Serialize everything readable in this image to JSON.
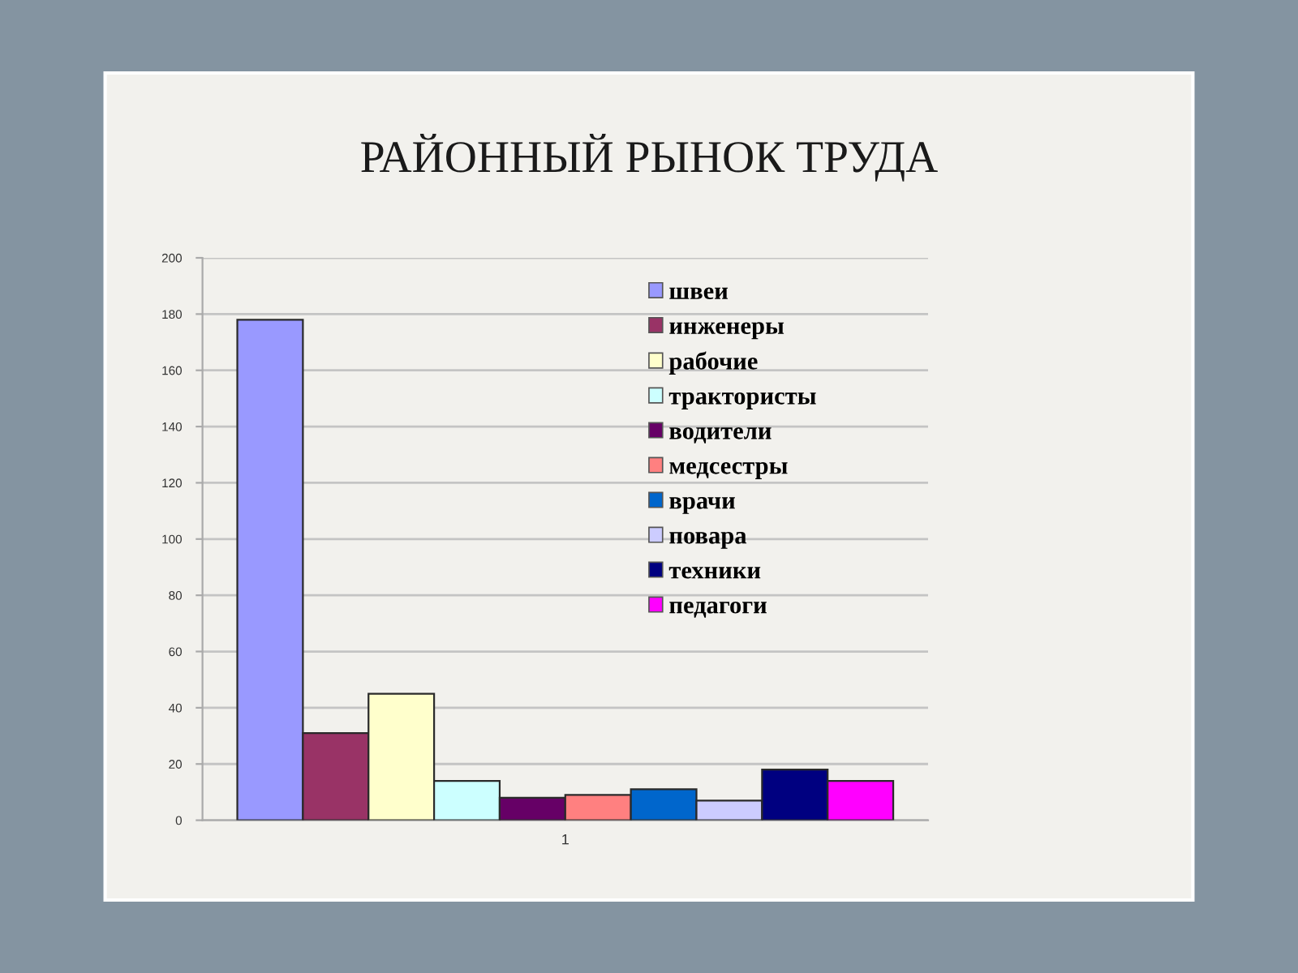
{
  "chart_data": {
    "type": "bar",
    "title": "РАЙОННЫЙ РЫНОК ТРУДА",
    "categories": [
      "1"
    ],
    "series": [
      {
        "name": "швеи",
        "color": "#9999ff",
        "values": [
          178
        ]
      },
      {
        "name": "инженеры",
        "color": "#993366",
        "values": [
          31
        ]
      },
      {
        "name": "рабочие",
        "color": "#ffffcc",
        "values": [
          45
        ]
      },
      {
        "name": "трактористы",
        "color": "#ccffff",
        "values": [
          14
        ]
      },
      {
        "name": "водители",
        "color": "#660066",
        "values": [
          8
        ]
      },
      {
        "name": "медсестры",
        "color": "#ff8080",
        "values": [
          9
        ]
      },
      {
        "name": "врачи",
        "color": "#0066cc",
        "values": [
          11
        ]
      },
      {
        "name": "повара",
        "color": "#ccccff",
        "values": [
          7
        ]
      },
      {
        "name": "техники",
        "color": "#000080",
        "values": [
          18
        ]
      },
      {
        "name": "педагоги",
        "color": "#ff00ff",
        "values": [
          14
        ]
      }
    ],
    "ylim": [
      0,
      200
    ],
    "yticks": [
      0,
      20,
      40,
      60,
      80,
      100,
      120,
      140,
      160,
      180,
      200
    ],
    "grid": "y",
    "legend": "top right"
  }
}
